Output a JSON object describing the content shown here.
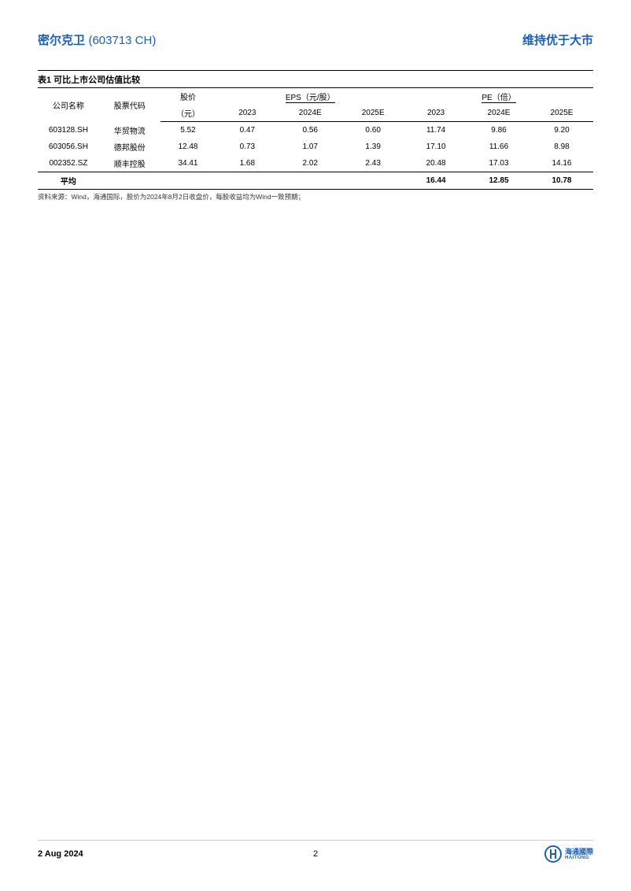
{
  "header": {
    "company_name": "密尔克卫",
    "ticker": "(603713 CH)",
    "rating": "维持优于大市"
  },
  "table": {
    "title": "表1   可比上市公司估值比较",
    "headers": {
      "company": "公司名称",
      "code": "股票代码",
      "price": "股价",
      "price_unit": "（元）",
      "eps_group": "EPS（元/股）",
      "pe_group": "PE（倍）",
      "y2023": "2023",
      "y2024e": "2024E",
      "y2025e": "2025E"
    },
    "rows": [
      {
        "code": "603128.SH",
        "name": "华贸物流",
        "price": "5.52",
        "eps2023": "0.47",
        "eps2024e": "0.56",
        "eps2025e": "0.60",
        "pe2023": "11.74",
        "pe2024e": "9.86",
        "pe2025e": "9.20"
      },
      {
        "code": "603056.SH",
        "name": "德邦股份",
        "price": "12.48",
        "eps2023": "0.73",
        "eps2024e": "1.07",
        "eps2025e": "1.39",
        "pe2023": "17.10",
        "pe2024e": "11.66",
        "pe2025e": "8.98"
      },
      {
        "code": "002352.SZ",
        "name": "顺丰控股",
        "price": "34.41",
        "eps2023": "1.68",
        "eps2024e": "2.02",
        "eps2025e": "2.43",
        "pe2023": "20.48",
        "pe2024e": "17.03",
        "pe2025e": "14.16"
      }
    ],
    "average": {
      "label": "平均",
      "pe2023": "16.44",
      "pe2024e": "12.85",
      "pe2025e": "10.78"
    },
    "source": "资料来源：Wind，海通国际，股价为2024年8月2日收盘价，每股收益均为Wind一致预期；"
  },
  "footer": {
    "date": "2 Aug 2024",
    "page": "2",
    "logo_cn": "海通國際",
    "logo_en": "HAITONG"
  },
  "colors": {
    "brand_blue": "#1a5fb4",
    "text_black": "#000000",
    "border_gray": "#cccccc"
  }
}
